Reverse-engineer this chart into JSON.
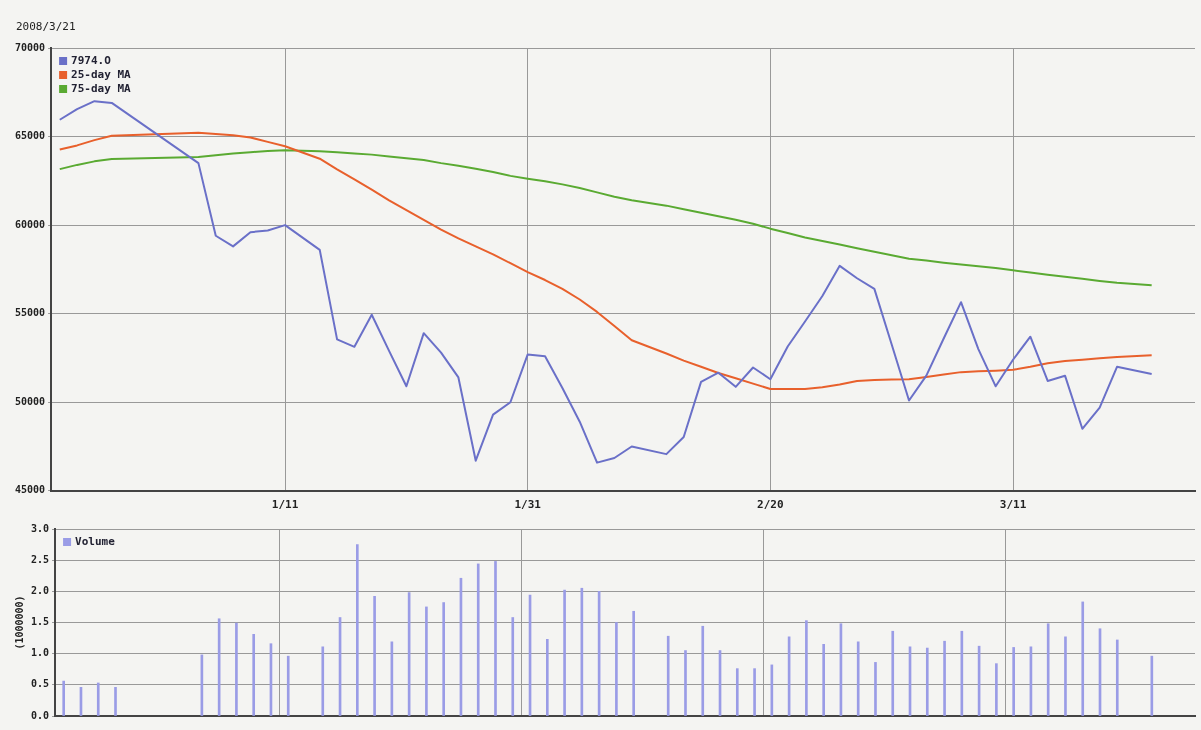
{
  "chart_data": [
    {
      "type": "line",
      "subtitle": "2008/3/21",
      "categories": [
        null,
        null,
        null,
        null,
        null,
        null,
        null,
        null,
        null,
        null,
        null,
        null,
        null,
        "1/11",
        null,
        null,
        null,
        null,
        null,
        null,
        null,
        null,
        null,
        null,
        null,
        null,
        null,
        "1/31",
        null,
        null,
        null,
        null,
        null,
        null,
        null,
        null,
        null,
        null,
        null,
        null,
        null,
        "2/20",
        null,
        null,
        null,
        null,
        null,
        null,
        null,
        null,
        null,
        null,
        null,
        null,
        null,
        "3/11",
        null,
        null,
        null,
        null,
        null,
        null,
        null,
        null,
        null,
        null
      ],
      "series": [
        {
          "name": "7974.O",
          "color": "#6a70c8",
          "values": [
            65950,
            66550,
            67000,
            66900,
            null,
            null,
            null,
            null,
            63500,
            59400,
            58800,
            59600,
            59700,
            60000,
            null,
            58600,
            53550,
            53130,
            54940,
            52900,
            50900,
            53900,
            52800,
            51400,
            46700,
            49300,
            50000,
            52700,
            52600,
            50800,
            48900,
            46590,
            46850,
            47500,
            null,
            47070,
            48040,
            51150,
            51670,
            50870,
            51960,
            51300,
            53150,
            54560,
            56000,
            57700,
            57000,
            56400,
            53260,
            50100,
            51500,
            53600,
            55650,
            53000,
            50900,
            52400,
            53700,
            51200,
            51500,
            48500,
            49700,
            52000,
            null,
            51600,
            null,
            null
          ]
        },
        {
          "name": "25-day MA",
          "color": "#e8602c",
          "values": [
            64270,
            64500,
            64800,
            65050,
            null,
            null,
            null,
            null,
            65220,
            65150,
            65080,
            64950,
            64700,
            64450,
            null,
            63750,
            63150,
            62580,
            62000,
            61400,
            60850,
            60300,
            59750,
            59250,
            58800,
            58350,
            57850,
            57350,
            56900,
            56400,
            55800,
            55100,
            54300,
            53500,
            null,
            52750,
            52350,
            52000,
            51650,
            51350,
            51050,
            50750,
            50750,
            50750,
            50850,
            51000,
            51200,
            51250,
            51280,
            51300,
            51430,
            51570,
            51700,
            51750,
            51780,
            51830,
            52000,
            52200,
            52330,
            52400,
            52480,
            52560,
            null,
            52650,
            null,
            null
          ]
        },
        {
          "name": "75-day MA",
          "color": "#5aaa32",
          "values": [
            63160,
            63400,
            63600,
            63730,
            null,
            null,
            null,
            null,
            63850,
            63950,
            64050,
            64120,
            64180,
            64230,
            null,
            64170,
            64110,
            64050,
            63980,
            63880,
            63780,
            63680,
            63500,
            63350,
            63180,
            63000,
            62780,
            62620,
            62480,
            62300,
            62100,
            61850,
            61600,
            61400,
            null,
            61100,
            60900,
            60700,
            60500,
            60300,
            60080,
            59800,
            59550,
            59300,
            59100,
            58900,
            58700,
            58500,
            58300,
            58100,
            58000,
            57880,
            57770,
            57680,
            57580,
            57450,
            57330,
            57200,
            57080,
            56970,
            56850,
            56750,
            null,
            56600,
            null,
            null
          ]
        }
      ],
      "ylim": [
        45000,
        70000
      ],
      "yticks": [
        45000,
        50000,
        55000,
        60000,
        65000,
        70000
      ],
      "grid": true,
      "legend": "top left"
    },
    {
      "type": "bar",
      "ylabel": "(1000000)",
      "categories": [
        null,
        null,
        null,
        null,
        null,
        null,
        null,
        null,
        null,
        null,
        null,
        null,
        null,
        null,
        null,
        null,
        null,
        null,
        null,
        null,
        null,
        null,
        null,
        null,
        null,
        null,
        null,
        null,
        null,
        null,
        null,
        null,
        null,
        null,
        null,
        null,
        null,
        null,
        null,
        null,
        null,
        null,
        null,
        null,
        null,
        null,
        null,
        null,
        null,
        null,
        null,
        null,
        null,
        null,
        null,
        null,
        null,
        null,
        null,
        null,
        null,
        null,
        null,
        null,
        null,
        null
      ],
      "series": [
        {
          "name": "Volume",
          "color": "#9a9ce6",
          "values": [
            0.56,
            0.46,
            0.53,
            0.46,
            null,
            null,
            null,
            null,
            0.98,
            1.56,
            1.49,
            1.31,
            1.16,
            0.96,
            null,
            1.11,
            1.58,
            2.75,
            1.92,
            1.19,
            1.98,
            1.75,
            1.82,
            2.21,
            2.44,
            2.48,
            1.58,
            1.94,
            1.23,
            2.02,
            2.05,
            2.0,
            1.5,
            1.68,
            null,
            1.28,
            1.05,
            1.44,
            1.05,
            0.76,
            0.76,
            0.82,
            1.27,
            1.53,
            1.15,
            1.48,
            1.19,
            0.86,
            1.36,
            1.11,
            1.09,
            1.2,
            1.36,
            1.12,
            0.84,
            1.1,
            1.11,
            1.48,
            1.27,
            1.83,
            1.4,
            1.22,
            null,
            0.96,
            null,
            null
          ]
        }
      ],
      "ylim": [
        0,
        3
      ],
      "yticks": [
        {
          "value": 0,
          "label": "0.0"
        },
        {
          "value": 0.5,
          "label": "0.5"
        },
        {
          "value": 1,
          "label": "1.0"
        },
        {
          "value": 1.5,
          "label": "1.5"
        },
        {
          "value": 2,
          "label": "2.0"
        },
        {
          "value": 2.5,
          "label": "2.5"
        },
        {
          "value": 3,
          "label": "3.0"
        }
      ],
      "grid": true,
      "legend": "top left",
      "tick_labels": "y"
    }
  ]
}
